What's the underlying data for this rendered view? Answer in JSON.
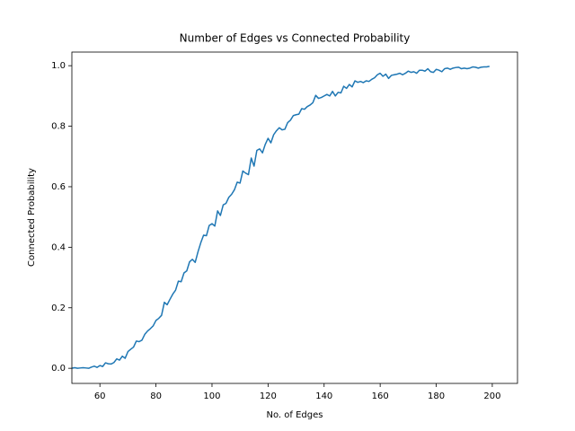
{
  "chart_data": {
    "type": "line",
    "title": "Number of Edges vs Connected Probability",
    "x_label": "No. of Edges",
    "y_label": "Connected Probability",
    "color": "#1f77b4",
    "x": [
      50,
      51,
      52,
      53,
      54,
      55,
      56,
      57,
      58,
      59,
      60,
      61,
      62,
      63,
      64,
      65,
      66,
      67,
      68,
      69,
      70,
      71,
      72,
      73,
      74,
      75,
      76,
      77,
      78,
      79,
      80,
      81,
      82,
      83,
      84,
      85,
      86,
      87,
      88,
      89,
      90,
      91,
      92,
      93,
      94,
      95,
      96,
      97,
      98,
      99,
      100,
      101,
      102,
      103,
      104,
      105,
      106,
      107,
      108,
      109,
      110,
      111,
      112,
      113,
      114,
      115,
      116,
      117,
      118,
      119,
      120,
      121,
      122,
      123,
      124,
      125,
      126,
      127,
      128,
      129,
      130,
      131,
      132,
      133,
      134,
      135,
      136,
      137,
      138,
      139,
      140,
      141,
      142,
      143,
      144,
      145,
      146,
      147,
      148,
      149,
      150,
      151,
      152,
      153,
      154,
      155,
      156,
      157,
      158,
      159,
      160,
      161,
      162,
      163,
      164,
      165,
      166,
      167,
      168,
      169,
      170,
      171,
      172,
      173,
      174,
      175,
      176,
      177,
      178,
      179,
      180,
      181,
      182,
      183,
      184,
      185,
      186,
      187,
      188,
      189,
      190,
      191,
      192,
      193,
      194,
      195,
      196,
      197,
      198,
      199
    ],
    "values": [
      0.0,
      0.002,
      0.0,
      0.001,
      0.002,
      0.001,
      0.0,
      0.004,
      0.007,
      0.003,
      0.009,
      0.006,
      0.018,
      0.015,
      0.014,
      0.019,
      0.031,
      0.027,
      0.04,
      0.033,
      0.055,
      0.063,
      0.07,
      0.09,
      0.088,
      0.093,
      0.112,
      0.123,
      0.131,
      0.14,
      0.158,
      0.165,
      0.175,
      0.218,
      0.21,
      0.228,
      0.245,
      0.258,
      0.288,
      0.286,
      0.315,
      0.322,
      0.352,
      0.36,
      0.35,
      0.385,
      0.415,
      0.44,
      0.438,
      0.472,
      0.478,
      0.47,
      0.52,
      0.505,
      0.54,
      0.545,
      0.565,
      0.575,
      0.59,
      0.615,
      0.612,
      0.652,
      0.645,
      0.64,
      0.695,
      0.668,
      0.72,
      0.725,
      0.712,
      0.74,
      0.76,
      0.745,
      0.772,
      0.785,
      0.795,
      0.788,
      0.79,
      0.812,
      0.82,
      0.835,
      0.838,
      0.84,
      0.858,
      0.856,
      0.865,
      0.87,
      0.878,
      0.902,
      0.892,
      0.895,
      0.9,
      0.905,
      0.9,
      0.915,
      0.9,
      0.912,
      0.91,
      0.932,
      0.925,
      0.938,
      0.93,
      0.95,
      0.945,
      0.948,
      0.944,
      0.95,
      0.948,
      0.955,
      0.96,
      0.97,
      0.975,
      0.965,
      0.972,
      0.958,
      0.968,
      0.97,
      0.972,
      0.975,
      0.97,
      0.975,
      0.982,
      0.978,
      0.98,
      0.975,
      0.985,
      0.985,
      0.982,
      0.99,
      0.98,
      0.978,
      0.988,
      0.985,
      0.98,
      0.99,
      0.992,
      0.988,
      0.992,
      0.994,
      0.995,
      0.99,
      0.992,
      0.99,
      0.992,
      0.996,
      0.995,
      0.992,
      0.995,
      0.996,
      0.996,
      0.998
    ],
    "xlim": [
      50,
      209
    ],
    "ylim": [
      -0.05,
      1.045
    ],
    "xticks": [
      60,
      80,
      100,
      120,
      140,
      160,
      180,
      200
    ],
    "yticks": [
      {
        "value": 0,
        "label": "0.0"
      },
      {
        "value": 0.2,
        "label": "0.2"
      },
      {
        "value": 0.4,
        "label": "0.4"
      },
      {
        "value": 0.6,
        "label": "0.6"
      },
      {
        "value": 0.8,
        "label": "0.8"
      },
      {
        "value": 1,
        "label": "1.0"
      }
    ]
  }
}
